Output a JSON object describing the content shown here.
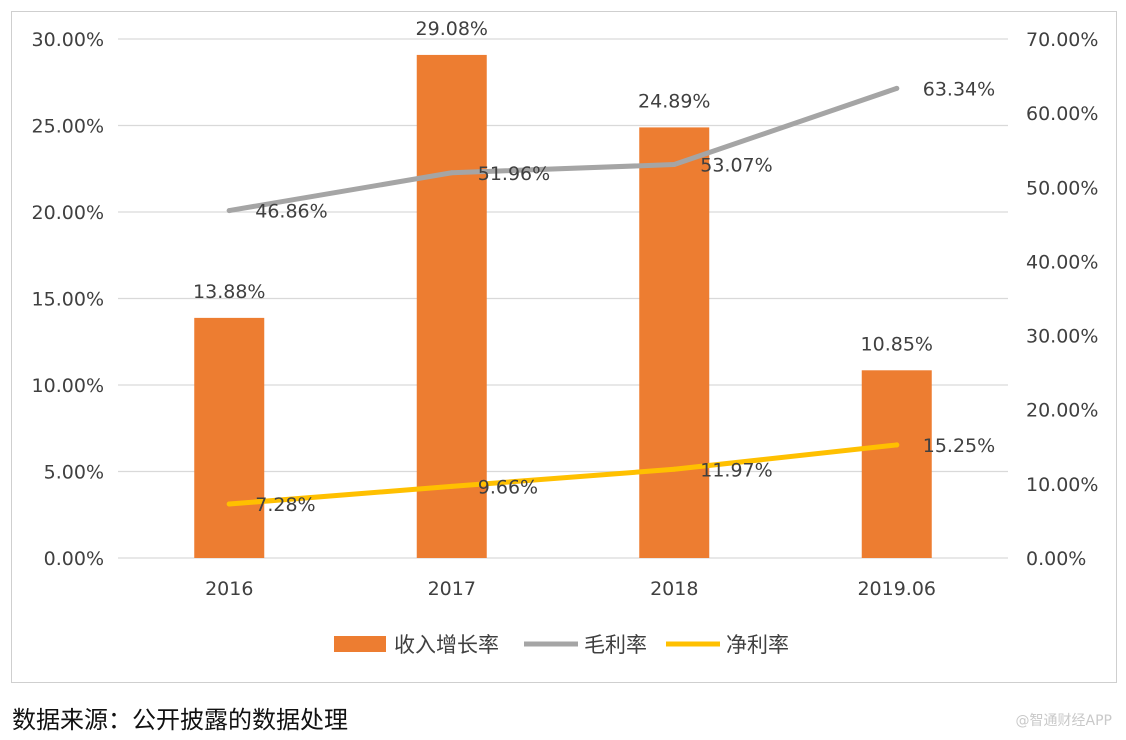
{
  "chart_data": {
    "type": "bar",
    "categories": [
      "2016",
      "2017",
      "2018",
      "2019.06"
    ],
    "series": [
      {
        "name": "收入增长率",
        "kind": "bar",
        "axis": "left",
        "values": [
          13.88,
          29.08,
          24.89,
          10.85
        ],
        "labels": [
          "13.88%",
          "29.08%",
          "24.89%",
          "10.85%"
        ]
      },
      {
        "name": "毛利率",
        "kind": "line",
        "axis": "right",
        "values": [
          46.86,
          51.96,
          53.07,
          63.34
        ],
        "labels": [
          "46.86%",
          "51.96%",
          "53.07%",
          "63.34%"
        ]
      },
      {
        "name": "净利率",
        "kind": "line",
        "axis": "right",
        "values": [
          7.28,
          9.66,
          11.97,
          15.25
        ],
        "labels": [
          "7.28%",
          "9.66%",
          "11.97%",
          "15.25%"
        ]
      }
    ],
    "y_left": {
      "ylim": [
        0,
        30
      ],
      "ticks": [
        "0.00%",
        "5.00%",
        "10.00%",
        "15.00%",
        "20.00%",
        "25.00%",
        "30.00%"
      ]
    },
    "y_right": {
      "ylim": [
        0,
        70
      ],
      "ticks": [
        "0.00%",
        "10.00%",
        "20.00%",
        "30.00%",
        "40.00%",
        "50.00%",
        "60.00%",
        "70.00%"
      ]
    },
    "grid": true,
    "legend_position": "bottom",
    "colors": {
      "bar": "#ED7D31",
      "gross_line": "#A5A5A5",
      "net_line": "#FFC000",
      "grid": "#D9D9D9",
      "text": "#404040"
    }
  },
  "source_note": "数据来源：公开披露的数据处理",
  "watermark": "@智通财经APP"
}
